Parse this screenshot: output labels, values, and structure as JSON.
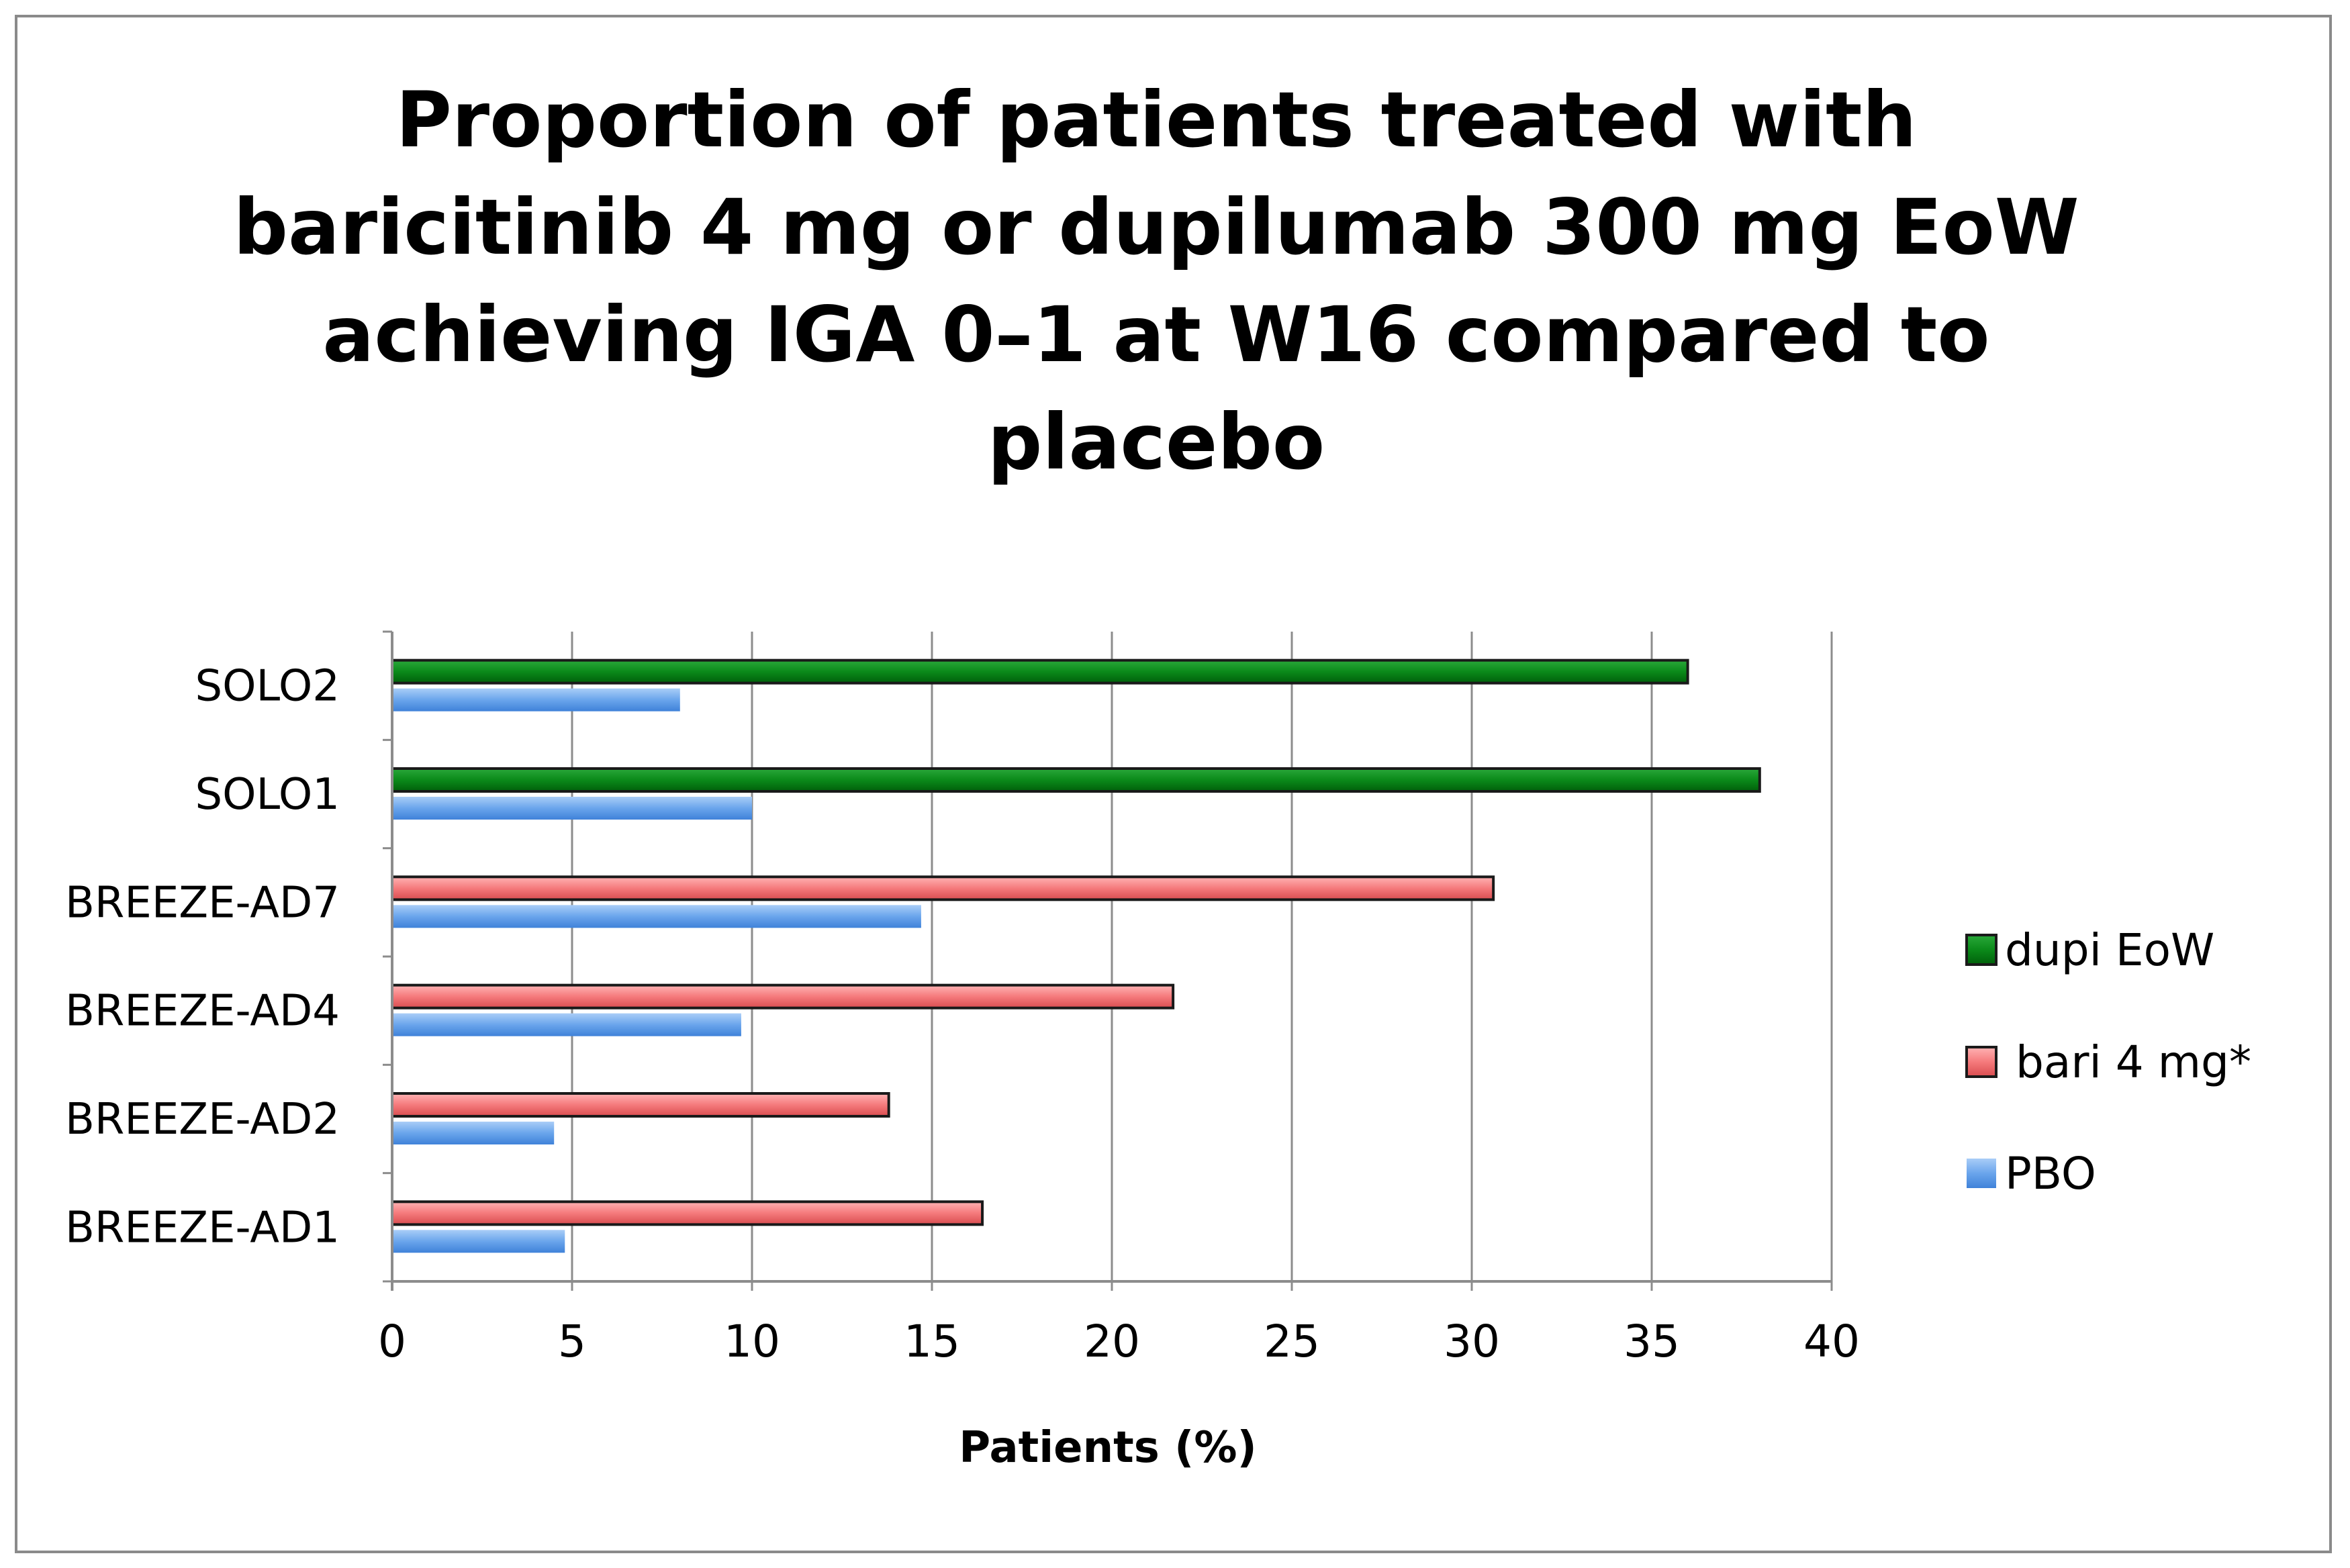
{
  "chart_data": {
    "type": "bar",
    "orientation": "horizontal",
    "title_lines": [
      "Proportion of patients treated with",
      "baricitinib 4 mg or dupilumab 300 mg EoW",
      "achieving IGA 0–1 at W16 compared to",
      "placebo"
    ],
    "categories": [
      "SOLO2",
      "SOLO1",
      "BREEZE-AD7",
      "BREEZE-AD4",
      "BREEZE-AD2",
      "BREEZE-AD1"
    ],
    "series": [
      {
        "name": "dupi EoW",
        "color": "#007a0f",
        "values": [
          36,
          38,
          null,
          null,
          null,
          null
        ]
      },
      {
        "name": "bari 4 mg*",
        "color": "#f06e70",
        "values": [
          null,
          null,
          30.6,
          21.7,
          13.8,
          16.4
        ]
      },
      {
        "name": "PBO",
        "color": "#5b9ae6",
        "values": [
          8,
          10,
          14.7,
          9.7,
          4.5,
          4.8
        ]
      }
    ],
    "xlabel": "Patients (%)",
    "ylabel": "",
    "xlim": [
      0,
      40
    ],
    "xticks": [
      0,
      5,
      10,
      15,
      20,
      25,
      30,
      35,
      40
    ],
    "grid": true,
    "legend_position": "right"
  }
}
